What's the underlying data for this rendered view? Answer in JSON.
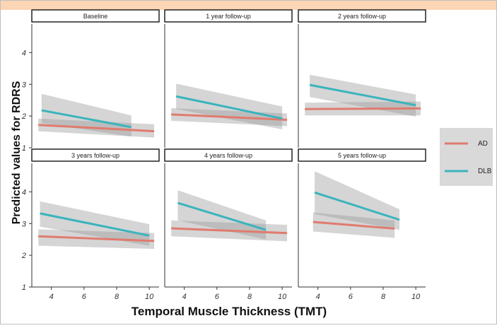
{
  "chart_data": {
    "type": "line",
    "ylabel": "Predicted values for RDRS",
    "xlabel": "Temporal Muscle Thickness (TMT)",
    "xlim": [
      2.8,
      10.6
    ],
    "ylim": [
      1,
      4.9
    ],
    "x_ticks": [
      4,
      6,
      8,
      10
    ],
    "y_ticks": [
      1,
      2,
      3,
      4
    ],
    "legend": {
      "position": "right",
      "items": [
        {
          "label": "AD",
          "color": "#e07b6e"
        },
        {
          "label": "DLB",
          "color": "#3ab4bd"
        }
      ]
    },
    "colors": {
      "AD": "#e07b6e",
      "DLB": "#3ab4bd",
      "band": "#9a9a9a",
      "header_border": "#222222"
    },
    "panels": [
      {
        "title": "Baseline",
        "series": [
          {
            "name": "AD",
            "x": [
              3.2,
              10.3
            ],
            "y": [
              1.72,
              1.52
            ],
            "ci_low": [
              1.52,
              1.32
            ],
            "ci_high": [
              1.92,
              1.74
            ]
          },
          {
            "name": "DLB",
            "x": [
              3.4,
              8.9
            ],
            "y": [
              2.18,
              1.65
            ],
            "ci_low": [
              1.78,
              1.35
            ],
            "ci_high": [
              2.7,
              2.02
            ]
          }
        ]
      },
      {
        "title": "1 year follow-up",
        "series": [
          {
            "name": "AD",
            "x": [
              3.2,
              10.3
            ],
            "y": [
              2.05,
              1.88
            ],
            "ci_low": [
              1.85,
              1.68
            ],
            "ci_high": [
              2.25,
              2.08
            ]
          },
          {
            "name": "DLB",
            "x": [
              3.5,
              10.0
            ],
            "y": [
              2.62,
              1.92
            ],
            "ci_low": [
              2.22,
              1.58
            ],
            "ci_high": [
              3.02,
              2.3
            ]
          }
        ]
      },
      {
        "title": "2 years follow-up",
        "series": [
          {
            "name": "AD",
            "x": [
              3.2,
              10.3
            ],
            "y": [
              2.22,
              2.24
            ],
            "ci_low": [
              2.02,
              2.02
            ],
            "ci_high": [
              2.42,
              2.46
            ]
          },
          {
            "name": "DLB",
            "x": [
              3.5,
              10.0
            ],
            "y": [
              2.98,
              2.34
            ],
            "ci_low": [
              2.6,
              1.98
            ],
            "ci_high": [
              3.3,
              2.68
            ]
          }
        ]
      },
      {
        "title": "3 years follow-up",
        "series": [
          {
            "name": "AD",
            "x": [
              3.2,
              10.3
            ],
            "y": [
              2.6,
              2.45
            ],
            "ci_low": [
              2.3,
              2.2
            ],
            "ci_high": [
              2.82,
              2.7
            ]
          },
          {
            "name": "DLB",
            "x": [
              3.3,
              10.0
            ],
            "y": [
              3.32,
              2.62
            ],
            "ci_low": [
              2.9,
              2.3
            ],
            "ci_high": [
              3.7,
              2.98
            ]
          }
        ]
      },
      {
        "title": "4 years follow-up",
        "series": [
          {
            "name": "AD",
            "x": [
              3.2,
              10.3
            ],
            "y": [
              2.85,
              2.7
            ],
            "ci_low": [
              2.6,
              2.44
            ],
            "ci_high": [
              3.1,
              2.96
            ]
          },
          {
            "name": "DLB",
            "x": [
              3.6,
              9.0
            ],
            "y": [
              3.65,
              2.8
            ],
            "ci_low": [
              3.1,
              2.5
            ],
            "ci_high": [
              4.05,
              3.1
            ]
          }
        ]
      },
      {
        "title": "5 years follow-up",
        "series": [
          {
            "name": "AD",
            "x": [
              3.7,
              8.7
            ],
            "y": [
              3.05,
              2.84
            ],
            "ci_low": [
              2.75,
              2.55
            ],
            "ci_high": [
              3.35,
              3.1
            ]
          },
          {
            "name": "DLB",
            "x": [
              3.8,
              9.0
            ],
            "y": [
              3.98,
              3.12
            ],
            "ci_low": [
              3.3,
              2.8
            ],
            "ci_high": [
              4.65,
              3.45
            ]
          }
        ]
      }
    ]
  }
}
